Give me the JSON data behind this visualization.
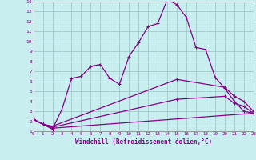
{
  "title": "",
  "xlabel": "Windchill (Refroidissement éolien,°C)",
  "ylabel": "",
  "background_color": "#c8eef0",
  "grid_color": "#a0c8cc",
  "line_color": "#880088",
  "xlim": [
    0,
    23
  ],
  "ylim": [
    1,
    14
  ],
  "x_ticks": [
    0,
    1,
    2,
    3,
    4,
    5,
    6,
    7,
    8,
    9,
    10,
    11,
    12,
    13,
    14,
    15,
    16,
    17,
    18,
    19,
    20,
    21,
    22,
    23
  ],
  "y_ticks": [
    1,
    2,
    3,
    4,
    5,
    6,
    7,
    8,
    9,
    10,
    11,
    12,
    13,
    14
  ],
  "series1_x": [
    0,
    1,
    2,
    3,
    4,
    5,
    6,
    7,
    8,
    9,
    10,
    11,
    12,
    13,
    14,
    15,
    16,
    17,
    18,
    19,
    20,
    21,
    22,
    23
  ],
  "series1_y": [
    2.2,
    1.7,
    1.2,
    3.2,
    6.3,
    6.5,
    7.5,
    7.7,
    6.3,
    5.7,
    8.5,
    9.9,
    11.5,
    11.8,
    14.2,
    13.7,
    12.4,
    9.4,
    9.2,
    6.4,
    5.3,
    4.0,
    3.0,
    2.8
  ],
  "series2_x": [
    0,
    1,
    2,
    15,
    20,
    21,
    22,
    23
  ],
  "series2_y": [
    2.2,
    1.7,
    1.5,
    6.2,
    5.4,
    4.5,
    4.0,
    3.0
  ],
  "series3_x": [
    0,
    1,
    2,
    15,
    20,
    21,
    22,
    23
  ],
  "series3_y": [
    2.2,
    1.7,
    1.4,
    4.2,
    4.5,
    3.8,
    3.5,
    2.8
  ],
  "series4_x": [
    0,
    1,
    2,
    23
  ],
  "series4_y": [
    2.2,
    1.7,
    1.3,
    2.8
  ]
}
